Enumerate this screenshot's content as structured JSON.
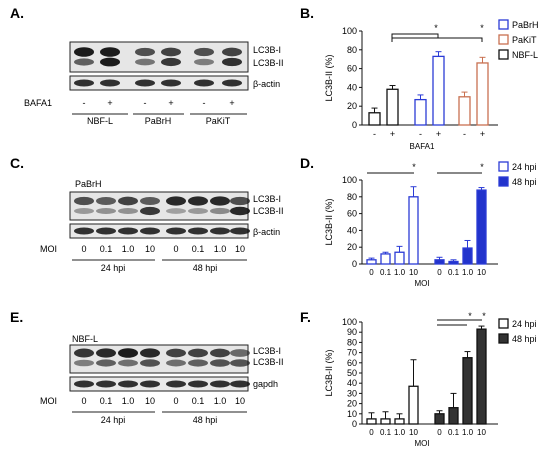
{
  "colors": {
    "PaBrH": "#2b3bd6",
    "PaKiT": "#c87050",
    "NBF-L": "#111111",
    "h24_fill": "#ffffff",
    "h48_fill_D": "#2233cc",
    "h48_fill_F": "#333333"
  },
  "panel_A": {
    "label": "A.",
    "band_labels": [
      "LC3B-I",
      "LC3B-II",
      "β-actin"
    ],
    "treatment_label": "BAFA1",
    "treatment_signs": [
      "-",
      "+",
      "-",
      "+",
      "-",
      "+"
    ],
    "groups": [
      "NBF-L",
      "PaBrH",
      "PaKiT"
    ]
  },
  "panel_C": {
    "label": "C.",
    "sample_label": "PaBrH",
    "band_labels": [
      "LC3B-I",
      "LC3B-II",
      "β-actin"
    ],
    "moi_label": "MOI",
    "moi_values": [
      "0",
      "0.1",
      "1.0",
      "10",
      "0",
      "0.1",
      "1.0",
      "10"
    ],
    "timepoints": [
      "24 hpi",
      "48 hpi"
    ]
  },
  "panel_E": {
    "label": "E.",
    "sample_label": "NBF-L",
    "band_labels": [
      "LC3B-I",
      "LC3B-II",
      "gapdh"
    ],
    "moi_label": "MOI",
    "moi_values": [
      "0",
      "0.1",
      "1.0",
      "10",
      "0",
      "0.1",
      "1.0",
      "10"
    ],
    "timepoints": [
      "24 hpi",
      "48 hpi"
    ]
  },
  "chart_data": [
    {
      "panel": "B.",
      "type": "bar",
      "ylabel": "LC3B-II (%)",
      "xlabel": "BAFA1",
      "ylim": [
        0,
        100
      ],
      "yticks": [
        0,
        20,
        40,
        60,
        80,
        100
      ],
      "groups": [
        {
          "name": "NBF-L",
          "bars": [
            {
              "x": "-",
              "value": 13,
              "err": 5
            },
            {
              "x": "+",
              "value": 38,
              "err": 4
            }
          ]
        },
        {
          "name": "PaBrH",
          "bars": [
            {
              "x": "-",
              "value": 27,
              "err": 5
            },
            {
              "x": "+",
              "value": 73,
              "err": 5
            }
          ]
        },
        {
          "name": "PaKiT",
          "bars": [
            {
              "x": "-",
              "value": 30,
              "err": 5
            },
            {
              "x": "+",
              "value": 66,
              "err": 6
            }
          ]
        }
      ],
      "legend": [
        "PaBrH",
        "PaKiT",
        "NBF-L"
      ],
      "legend_placement": "top-right",
      "significance": [
        "*",
        "*"
      ]
    },
    {
      "panel": "D.",
      "type": "bar",
      "ylabel": "LC3B-II (%)",
      "xlabel": "MOI",
      "ylim": [
        0,
        100
      ],
      "yticks": [
        0,
        20,
        40,
        60,
        80,
        100
      ],
      "categories": [
        "0",
        "0.1",
        "1.0",
        "10"
      ],
      "series": [
        {
          "name": "24 hpi",
          "values": [
            5,
            12,
            14,
            80
          ],
          "errors": [
            2,
            2,
            7,
            12
          ]
        },
        {
          "name": "48 hpi",
          "values": [
            5,
            3,
            19,
            88
          ],
          "errors": [
            3,
            2,
            9,
            3
          ]
        }
      ],
      "legend_placement": "top-right",
      "significance": [
        "*",
        "*"
      ]
    },
    {
      "panel": "F.",
      "type": "bar",
      "ylabel": "LC3B-II (%)",
      "xlabel": "MOI",
      "ylim": [
        0,
        100
      ],
      "yticks": [
        0,
        10,
        20,
        30,
        40,
        50,
        60,
        70,
        80,
        90,
        100
      ],
      "categories": [
        "0",
        "0.1",
        "1.0",
        "10"
      ],
      "series": [
        {
          "name": "24 hpi",
          "values": [
            5,
            5,
            5,
            37
          ],
          "errors": [
            6,
            7,
            5,
            26
          ]
        },
        {
          "name": "48 hpi",
          "values": [
            10,
            16,
            65,
            93
          ],
          "errors": [
            3,
            14,
            6,
            3
          ]
        }
      ],
      "legend_placement": "top-right",
      "significance": [
        "*",
        "*"
      ]
    }
  ]
}
